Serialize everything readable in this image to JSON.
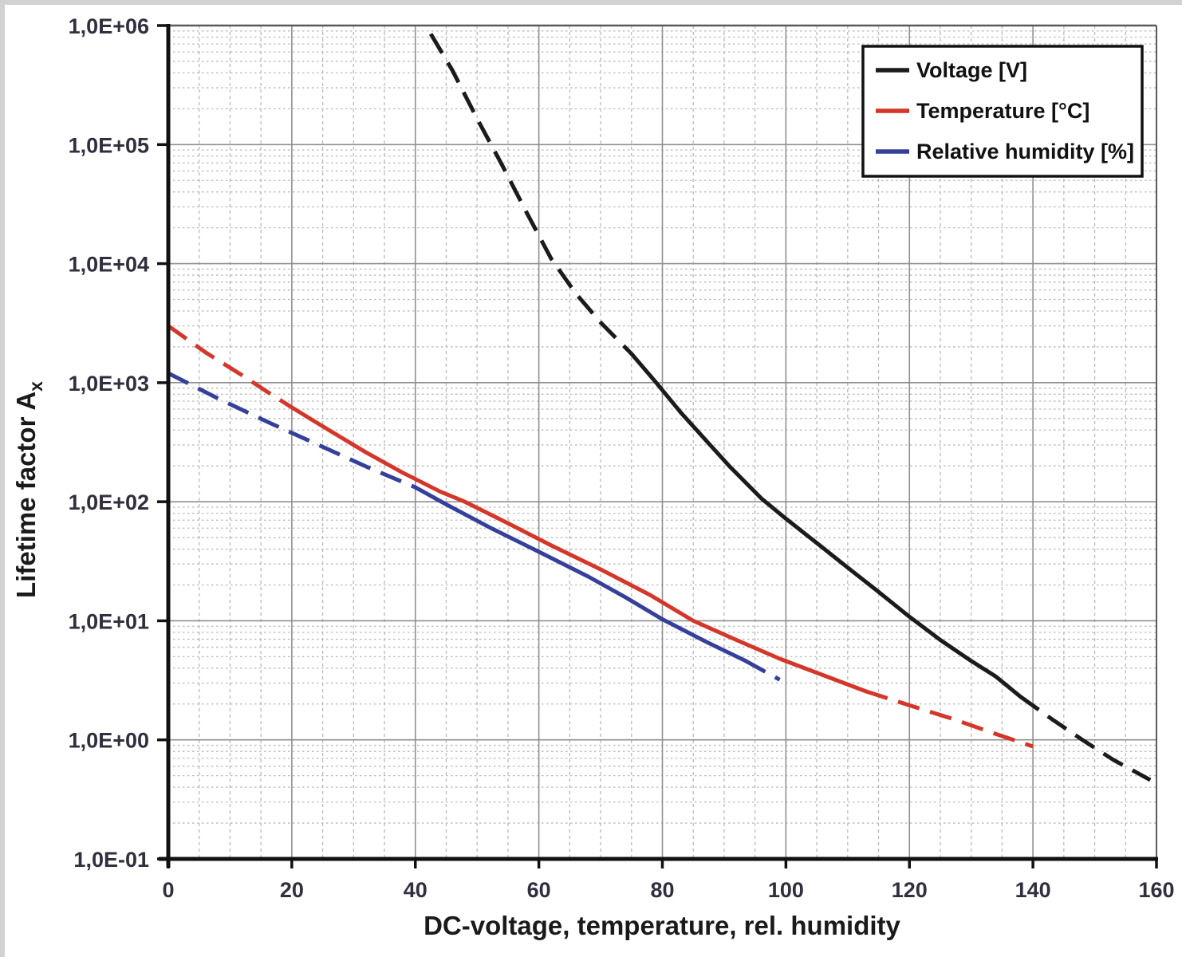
{
  "chart_data": {
    "type": "line",
    "title": "",
    "xlabel": "DC-voltage, temperature, rel. humidity",
    "ylabel": {
      "main": "Lifetime factor A",
      "sub": "x"
    },
    "x_axis": {
      "min": 0,
      "max": 160,
      "major_step": 20,
      "minor_step": 5,
      "tick_labels": [
        "0",
        "20",
        "40",
        "60",
        "80",
        "100",
        "120",
        "140",
        "160"
      ]
    },
    "y_axis": {
      "scale": "log10",
      "min_exponent": -1,
      "max_exponent": 6,
      "tick_labels": [
        "1,0E+06",
        "1,0E+05",
        "1,0E+04",
        "1,0E+03",
        "1,0E+02",
        "1,0E+01",
        "1,0E+00",
        "1,0E-01"
      ]
    },
    "grid": {
      "major": true,
      "minor": true
    },
    "legend": {
      "position": "top-right"
    },
    "series": [
      {
        "name": "Voltage [V]",
        "color": "#1b1b1b",
        "segments": [
          {
            "style": "dashed",
            "points": [
              [
                42.5,
                850000
              ],
              [
                46,
                420000
              ],
              [
                50,
                165000
              ],
              [
                54,
                68000
              ],
              [
                58,
                27000
              ],
              [
                62,
                11000
              ],
              [
                66,
                5600
              ],
              [
                70,
                3200
              ],
              [
                75,
                1750
              ]
            ]
          },
          {
            "style": "solid",
            "points": [
              [
                75,
                1750
              ],
              [
                79,
                1000
              ],
              [
                83,
                560
              ],
              [
                87,
                330
              ],
              [
                91,
                195
              ],
              [
                96,
                107
              ],
              [
                100,
                72
              ],
              [
                105,
                45
              ],
              [
                110,
                28
              ],
              [
                115,
                17.5
              ],
              [
                120,
                10.8
              ],
              [
                125,
                6.9
              ],
              [
                130,
                4.6
              ],
              [
                134,
                3.4
              ],
              [
                138,
                2.3
              ]
            ]
          },
          {
            "style": "dashed",
            "points": [
              [
                138,
                2.3
              ],
              [
                143,
                1.5
              ],
              [
                148,
                1.0
              ],
              [
                153,
                0.68
              ],
              [
                159,
                0.46
              ]
            ]
          }
        ]
      },
      {
        "name": "Temperature [°C]",
        "color": "#d4372a",
        "segments": [
          {
            "style": "dashed",
            "points": [
              [
                0,
                3000
              ],
              [
                6,
                1800
              ],
              [
                12,
                1150
              ],
              [
                16,
                840
              ],
              [
                20,
                620
              ]
            ]
          },
          {
            "style": "solid",
            "points": [
              [
                20,
                620
              ],
              [
                26,
                400
              ],
              [
                32,
                260
              ],
              [
                38,
                175
              ],
              [
                44,
                122
              ],
              [
                48,
                100
              ],
              [
                55,
                66
              ],
              [
                62,
                43
              ],
              [
                70,
                27
              ],
              [
                78,
                16.5
              ],
              [
                85,
                10
              ],
              [
                92,
                6.9
              ],
              [
                99,
                4.8
              ],
              [
                106,
                3.5
              ],
              [
                113,
                2.55
              ]
            ]
          },
          {
            "style": "dashed",
            "points": [
              [
                113,
                2.55
              ],
              [
                120,
                1.95
              ],
              [
                127,
                1.5
              ],
              [
                134,
                1.12
              ],
              [
                140,
                0.88
              ]
            ]
          }
        ]
      },
      {
        "name": "Relative humidity [%]",
        "color": "#34409a",
        "segments": [
          {
            "style": "dashed",
            "points": [
              [
                0,
                1200
              ],
              [
                8,
                740
              ],
              [
                16,
                470
              ],
              [
                24,
                305
              ],
              [
                32,
                198
              ],
              [
                40,
                132
              ]
            ]
          },
          {
            "style": "solid",
            "points": [
              [
                40,
                132
              ],
              [
                45,
                95
              ],
              [
                52,
                61
              ],
              [
                60,
                38
              ],
              [
                68,
                23.5
              ],
              [
                74,
                15.8
              ],
              [
                80,
                10.3
              ],
              [
                87,
                6.7
              ],
              [
                93.5,
                4.6
              ]
            ]
          },
          {
            "style": "dashed",
            "points": [
              [
                93.5,
                4.6
              ],
              [
                99,
                3.2
              ]
            ]
          }
        ]
      }
    ],
    "colors": {
      "grid_major": "#8f8f8f",
      "grid_minor": "#b9b9b9",
      "axis": "#111111",
      "plot_border": "#5a5a5a",
      "legend_border": "#111111",
      "legend_bg": "#ffffff"
    }
  }
}
